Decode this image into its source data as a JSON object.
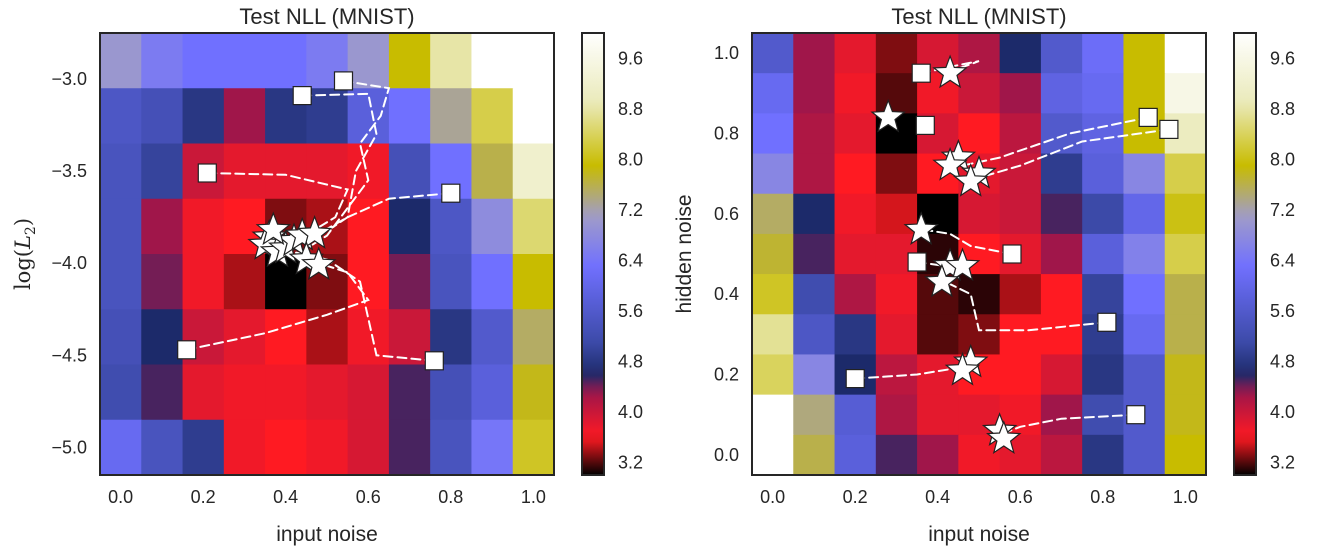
{
  "colormap": {
    "name": "gist_stern_r-like",
    "stops": [
      {
        "v": 3.0,
        "color": "#000000"
      },
      {
        "v": 3.6,
        "color": "#ff1a22"
      },
      {
        "v": 4.3,
        "color": "#a0164a"
      },
      {
        "v": 4.6,
        "color": "#1c2a6a"
      },
      {
        "v": 5.1,
        "color": "#3c4aa8"
      },
      {
        "v": 6.3,
        "color": "#7070ff"
      },
      {
        "v": 7.1,
        "color": "#a09cc8"
      },
      {
        "v": 7.9,
        "color": "#c8bc00"
      },
      {
        "v": 8.9,
        "color": "#eaeaba"
      },
      {
        "v": 10.0,
        "color": "#ffffff"
      }
    ],
    "colorbar_ticks": [
      "3.2",
      "4.0",
      "4.8",
      "5.6",
      "6.4",
      "7.2",
      "8.0",
      "8.8",
      "9.6"
    ],
    "colorbar_range": [
      3.0,
      10.0
    ]
  },
  "chart_data": [
    {
      "type": "heatmap",
      "title": "Test NLL (MNIST)",
      "xlabel": "input noise",
      "ylabel": "log(L_2)",
      "xlim": [
        -0.05,
        1.05
      ],
      "ylim": [
        -5.15,
        -2.75
      ],
      "x_ticks": [
        "0.0",
        "0.2",
        "0.4",
        "0.6",
        "0.8",
        "1.0"
      ],
      "y_ticks": [
        "−3.0",
        "−3.5",
        "−4.0",
        "−4.5",
        "−5.0"
      ],
      "x_tick_values": [
        0.0,
        0.2,
        0.4,
        0.6,
        0.8,
        1.0
      ],
      "y_tick_values": [
        -3.0,
        -3.5,
        -4.0,
        -4.5,
        -5.0
      ],
      "x_centers": [
        0.0,
        0.1,
        0.2,
        0.3,
        0.4,
        0.5,
        0.6,
        0.7,
        0.8,
        0.9,
        1.0
      ],
      "y_centers": [
        -2.9,
        -3.2,
        -3.5,
        -3.8,
        -4.1,
        -4.4,
        -4.7,
        -5.0
      ],
      "values": [
        [
          7.0,
          6.5,
          6.3,
          6.3,
          6.3,
          6.5,
          7.0,
          7.9,
          8.8,
          10.0,
          10.0
        ],
        [
          5.5,
          5.3,
          4.8,
          4.3,
          4.8,
          4.9,
          5.8,
          6.3,
          7.3,
          8.3,
          10.0
        ],
        [
          5.4,
          5.0,
          4.0,
          3.8,
          3.8,
          3.8,
          3.7,
          5.3,
          6.3,
          7.6,
          9.2
        ],
        [
          5.4,
          4.3,
          3.7,
          3.6,
          3.3,
          3.4,
          3.6,
          4.6,
          5.5,
          6.8,
          8.5
        ],
        [
          5.4,
          4.4,
          3.7,
          3.4,
          3.0,
          3.3,
          3.6,
          4.4,
          5.4,
          6.3,
          7.9
        ],
        [
          5.3,
          4.6,
          4.0,
          3.8,
          3.6,
          3.4,
          3.7,
          4.0,
          4.8,
          5.6,
          7.5
        ],
        [
          5.2,
          4.5,
          3.8,
          3.7,
          3.7,
          3.8,
          3.9,
          4.5,
          5.3,
          5.8,
          7.8
        ],
        [
          6.1,
          5.4,
          4.9,
          3.7,
          3.6,
          3.7,
          3.9,
          4.5,
          5.4,
          6.4,
          8.1
        ]
      ],
      "markers": {
        "squares": [
          [
            0.54,
            -3.01
          ],
          [
            0.44,
            -3.09
          ],
          [
            0.21,
            -3.51
          ],
          [
            0.8,
            -3.62
          ],
          [
            0.16,
            -4.47
          ],
          [
            0.76,
            -4.53
          ]
        ],
        "stars": [
          [
            0.36,
            -3.86
          ],
          [
            0.35,
            -3.9
          ],
          [
            0.38,
            -3.94
          ],
          [
            0.4,
            -3.92
          ],
          [
            0.42,
            -3.88
          ],
          [
            0.37,
            -3.82
          ],
          [
            0.44,
            -3.85
          ],
          [
            0.47,
            -3.84
          ],
          [
            0.45,
            -3.98
          ],
          [
            0.48,
            -4.01
          ]
        ]
      },
      "trajectories": [
        [
          [
            0.54,
            -3.01
          ],
          [
            0.65,
            -3.05
          ],
          [
            0.63,
            -3.2
          ],
          [
            0.58,
            -3.35
          ],
          [
            0.6,
            -3.55
          ],
          [
            0.55,
            -3.7
          ],
          [
            0.5,
            -3.85
          ],
          [
            0.45,
            -3.92
          ]
        ],
        [
          [
            0.44,
            -3.09
          ],
          [
            0.6,
            -3.08
          ],
          [
            0.62,
            -3.3
          ],
          [
            0.57,
            -3.5
          ],
          [
            0.55,
            -3.75
          ],
          [
            0.45,
            -3.9
          ]
        ],
        [
          [
            0.21,
            -3.51
          ],
          [
            0.4,
            -3.52
          ],
          [
            0.55,
            -3.6
          ],
          [
            0.52,
            -3.75
          ],
          [
            0.44,
            -3.86
          ]
        ],
        [
          [
            0.8,
            -3.62
          ],
          [
            0.65,
            -3.65
          ],
          [
            0.55,
            -3.75
          ],
          [
            0.48,
            -3.84
          ]
        ],
        [
          [
            0.16,
            -4.47
          ],
          [
            0.35,
            -4.38
          ],
          [
            0.5,
            -4.28
          ],
          [
            0.6,
            -4.2
          ],
          [
            0.55,
            -4.05
          ],
          [
            0.48,
            -4.0
          ]
        ],
        [
          [
            0.76,
            -4.53
          ],
          [
            0.62,
            -4.5
          ],
          [
            0.6,
            -4.3
          ],
          [
            0.58,
            -4.1
          ],
          [
            0.5,
            -3.98
          ],
          [
            0.4,
            -3.93
          ]
        ]
      ]
    },
    {
      "type": "heatmap",
      "title": "Test NLL (MNIST)",
      "xlabel": "input noise",
      "ylabel": "hidden noise",
      "xlim": [
        -0.05,
        1.05
      ],
      "ylim": [
        -0.05,
        1.05
      ],
      "x_ticks": [
        "0.0",
        "0.2",
        "0.4",
        "0.6",
        "0.8",
        "1.0"
      ],
      "y_ticks": [
        "1.0",
        "0.8",
        "0.6",
        "0.4",
        "0.2",
        "0.0"
      ],
      "x_tick_values": [
        0.0,
        0.2,
        0.4,
        0.6,
        0.8,
        1.0
      ],
      "y_tick_values": [
        1.0,
        0.8,
        0.6,
        0.4,
        0.2,
        0.0
      ],
      "x_centers": [
        0.0,
        0.1,
        0.2,
        0.3,
        0.4,
        0.5,
        0.6,
        0.7,
        0.8,
        0.9,
        1.0
      ],
      "y_centers": [
        1.0,
        0.9,
        0.8,
        0.7,
        0.6,
        0.5,
        0.4,
        0.3,
        0.2,
        0.1,
        0.0
      ],
      "values": [
        [
          5.6,
          4.3,
          3.8,
          3.3,
          3.9,
          4.2,
          4.6,
          5.6,
          6.2,
          7.9,
          10.0
        ],
        [
          6.1,
          4.3,
          3.7,
          3.2,
          3.7,
          4.0,
          4.3,
          5.9,
          6.1,
          7.9,
          9.6
        ],
        [
          6.3,
          4.2,
          3.8,
          3.0,
          3.9,
          3.6,
          4.1,
          5.6,
          5.9,
          7.9,
          9.0
        ],
        [
          6.7,
          4.2,
          3.6,
          3.3,
          3.6,
          3.8,
          4.0,
          4.9,
          5.8,
          6.7,
          8.3
        ],
        [
          7.5,
          4.6,
          3.7,
          3.5,
          3.0,
          3.9,
          4.0,
          4.5,
          5.1,
          6.0,
          8.0
        ],
        [
          7.7,
          4.5,
          3.8,
          3.8,
          3.1,
          3.6,
          3.8,
          4.3,
          5.8,
          6.6,
          8.3
        ],
        [
          8.1,
          5.2,
          4.2,
          3.7,
          3.2,
          3.1,
          3.4,
          3.6,
          5.0,
          6.3,
          7.6
        ],
        [
          8.7,
          5.5,
          4.8,
          3.8,
          3.2,
          3.3,
          3.6,
          3.6,
          4.9,
          6.1,
          7.6
        ],
        [
          8.4,
          6.7,
          4.6,
          4.1,
          3.8,
          3.6,
          3.6,
          3.9,
          4.8,
          5.6,
          7.8
        ],
        [
          10.0,
          7.4,
          5.7,
          4.2,
          3.8,
          3.8,
          3.7,
          4.3,
          5.2,
          5.6,
          7.8
        ],
        [
          10.0,
          7.6,
          5.8,
          4.5,
          4.3,
          3.7,
          3.8,
          4.1,
          4.8,
          5.6,
          7.9
        ]
      ],
      "markers": {
        "squares": [
          [
            0.36,
            0.95
          ],
          [
            0.37,
            0.82
          ],
          [
            0.91,
            0.84
          ],
          [
            0.96,
            0.81
          ],
          [
            0.35,
            0.48
          ],
          [
            0.58,
            0.5
          ],
          [
            0.81,
            0.33
          ],
          [
            0.2,
            0.19
          ],
          [
            0.88,
            0.1
          ]
        ],
        "stars": [
          [
            0.43,
            0.95
          ],
          [
            0.28,
            0.84
          ],
          [
            0.45,
            0.74
          ],
          [
            0.43,
            0.72
          ],
          [
            0.5,
            0.7
          ],
          [
            0.48,
            0.68
          ],
          [
            0.36,
            0.56
          ],
          [
            0.43,
            0.47
          ],
          [
            0.46,
            0.47
          ],
          [
            0.41,
            0.43
          ],
          [
            0.48,
            0.23
          ],
          [
            0.46,
            0.21
          ],
          [
            0.55,
            0.06
          ],
          [
            0.56,
            0.04
          ]
        ]
      },
      "trajectories": [
        [
          [
            0.36,
            0.95
          ],
          [
            0.45,
            0.97
          ],
          [
            0.5,
            0.98
          ],
          [
            0.42,
            0.95
          ]
        ],
        [
          [
            0.91,
            0.84
          ],
          [
            0.72,
            0.8
          ],
          [
            0.55,
            0.74
          ],
          [
            0.46,
            0.72
          ]
        ],
        [
          [
            0.96,
            0.81
          ],
          [
            0.75,
            0.78
          ],
          [
            0.6,
            0.72
          ],
          [
            0.5,
            0.69
          ]
        ],
        [
          [
            0.58,
            0.5
          ],
          [
            0.48,
            0.52
          ],
          [
            0.43,
            0.55
          ],
          [
            0.37,
            0.56
          ]
        ],
        [
          [
            0.35,
            0.48
          ],
          [
            0.42,
            0.47
          ],
          [
            0.46,
            0.47
          ]
        ],
        [
          [
            0.81,
            0.33
          ],
          [
            0.62,
            0.31
          ],
          [
            0.5,
            0.31
          ],
          [
            0.48,
            0.4
          ],
          [
            0.42,
            0.43
          ]
        ],
        [
          [
            0.2,
            0.19
          ],
          [
            0.35,
            0.2
          ],
          [
            0.47,
            0.22
          ]
        ],
        [
          [
            0.88,
            0.1
          ],
          [
            0.7,
            0.09
          ],
          [
            0.6,
            0.07
          ],
          [
            0.55,
            0.05
          ]
        ]
      ]
    }
  ]
}
